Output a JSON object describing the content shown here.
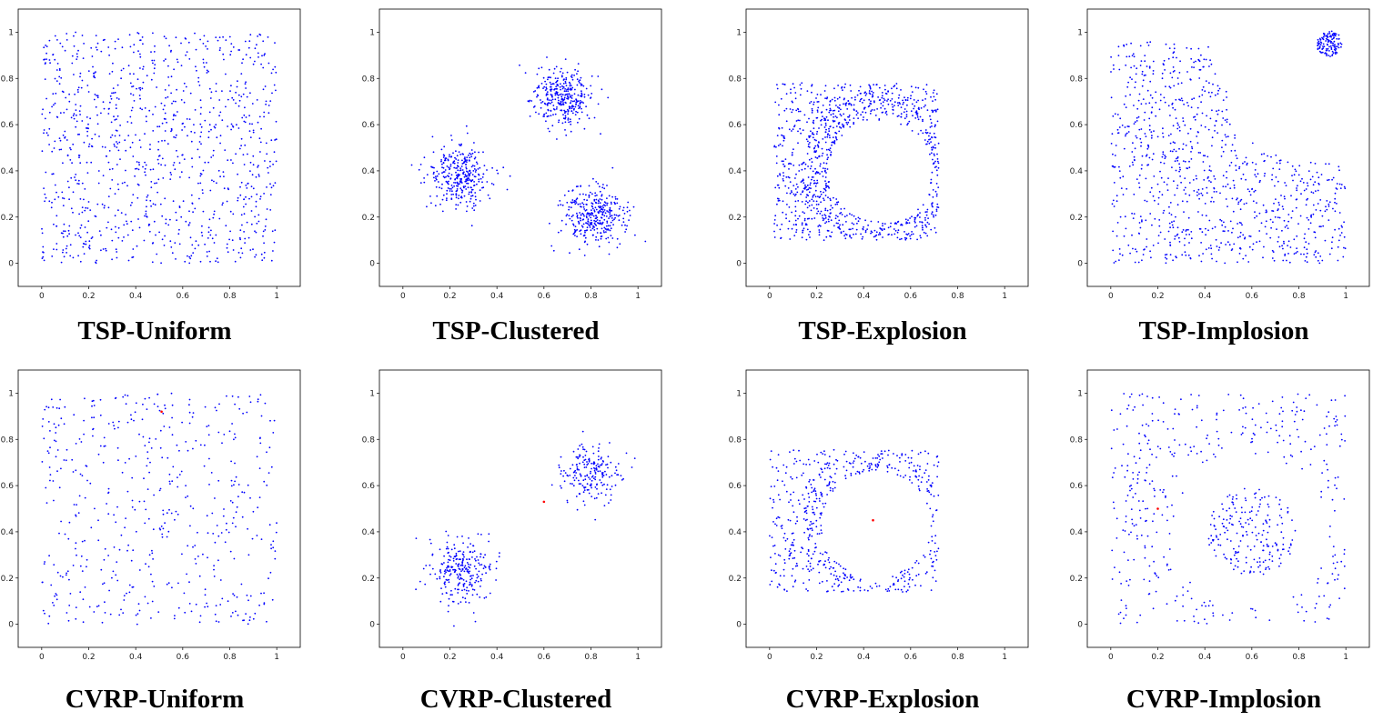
{
  "colors": {
    "city": "#0000ff",
    "depot": "#ff0000",
    "frame": "#000000"
  },
  "panels": [
    {
      "caption": "TSP-Uniform"
    },
    {
      "caption": "TSP-Clustered"
    },
    {
      "caption": "TSP-Explosion"
    },
    {
      "caption": "TSP-Implosion"
    },
    {
      "caption": "CVRP-Uniform"
    },
    {
      "caption": "CVRP-Clustered"
    },
    {
      "caption": "CVRP-Explosion"
    },
    {
      "caption": "CVRP-Implosion"
    }
  ],
  "chart_data": [
    {
      "type": "scatter",
      "title": "TSP-Uniform",
      "xlim": [
        -0.1,
        1.1
      ],
      "ylim": [
        -0.1,
        1.1
      ],
      "xticks": [
        0,
        0.2,
        0.4,
        0.6,
        0.8,
        1
      ],
      "yticks": [
        0,
        0.2,
        0.4,
        0.6,
        0.8,
        1
      ],
      "xtick_labels": [
        "0",
        "0.2",
        "0.4",
        "0.6",
        "0.8",
        "1"
      ],
      "ytick_labels": [
        "0",
        "0.2",
        "0.4",
        "0.6",
        "0.8",
        "1"
      ],
      "grid": false,
      "series": [
        {
          "kind": "uniform",
          "n": 1000,
          "seed": 11,
          "region": {
            "x": [
              0,
              1
            ],
            "y": [
              0,
              1
            ]
          }
        }
      ],
      "depot": null
    },
    {
      "type": "scatter",
      "title": "TSP-Clustered",
      "xlim": [
        -0.1,
        1.1
      ],
      "ylim": [
        -0.1,
        1.1
      ],
      "xticks": [
        0,
        0.2,
        0.4,
        0.6,
        0.8,
        1
      ],
      "yticks": [
        0,
        0.2,
        0.4,
        0.6,
        0.8,
        1
      ],
      "xtick_labels": [
        "0",
        "0.2",
        "0.4",
        "0.6",
        "0.8",
        "1"
      ],
      "ytick_labels": [
        "0",
        "0.2",
        "0.4",
        "0.6",
        "0.8",
        "1"
      ],
      "grid": false,
      "series": [
        {
          "kind": "gaussian",
          "n": 330,
          "seed": 21,
          "center": [
            0.68,
            0.72
          ],
          "sd": 0.065
        },
        {
          "kind": "gaussian",
          "n": 330,
          "seed": 22,
          "center": [
            0.24,
            0.38
          ],
          "sd": 0.065
        },
        {
          "kind": "gaussian",
          "n": 340,
          "seed": 23,
          "center": [
            0.81,
            0.2
          ],
          "sd": 0.065
        }
      ],
      "depot": null
    },
    {
      "type": "scatter",
      "title": "TSP-Explosion",
      "xlim": [
        -0.1,
        1.1
      ],
      "ylim": [
        -0.1,
        1.1
      ],
      "xticks": [
        0,
        0.2,
        0.4,
        0.6,
        0.8,
        1
      ],
      "yticks": [
        0,
        0.2,
        0.4,
        0.6,
        0.8,
        1
      ],
      "xtick_labels": [
        "0",
        "0.2",
        "0.4",
        "0.6",
        "0.8",
        "1"
      ],
      "ytick_labels": [
        "0",
        "0.2",
        "0.4",
        "0.6",
        "0.8",
        "1"
      ],
      "grid": false,
      "series": [
        {
          "kind": "hole",
          "n": 1000,
          "seed": 31,
          "region": {
            "x": [
              0.02,
              0.72
            ],
            "y": [
              0.1,
              0.78
            ]
          },
          "hole_center": [
            0.47,
            0.4
          ],
          "hole_radius": 0.22,
          "ring_scatter": 0.12
        }
      ],
      "depot": null
    },
    {
      "type": "scatter",
      "title": "TSP-Implosion",
      "xlim": [
        -0.1,
        1.1
      ],
      "ylim": [
        -0.1,
        1.1
      ],
      "xticks": [
        0,
        0.2,
        0.4,
        0.6,
        0.8,
        1
      ],
      "yticks": [
        0,
        0.2,
        0.4,
        0.6,
        0.8,
        1
      ],
      "xtick_labels": [
        "0",
        "0.2",
        "0.4",
        "0.6",
        "0.8",
        "1"
      ],
      "ytick_labels": [
        "0",
        "0.2",
        "0.4",
        "0.6",
        "0.8",
        "1"
      ],
      "grid": false,
      "series": [
        {
          "kind": "staircase",
          "n": 900,
          "seed": 41,
          "region": {
            "x": [
              0,
              1
            ],
            "y": [
              0,
              0.97
            ]
          }
        },
        {
          "kind": "disc",
          "n": 120,
          "seed": 42,
          "center": [
            0.93,
            0.95
          ],
          "radius": 0.055
        }
      ],
      "depot": null
    },
    {
      "type": "scatter",
      "title": "CVRP-Uniform",
      "xlim": [
        -0.1,
        1.1
      ],
      "ylim": [
        -0.1,
        1.1
      ],
      "xticks": [
        0,
        0.2,
        0.4,
        0.6,
        0.8,
        1
      ],
      "yticks": [
        0,
        0.2,
        0.4,
        0.6,
        0.8,
        1
      ],
      "xtick_labels": [
        "0",
        "0.2",
        "0.4",
        "0.6",
        "0.8",
        "1"
      ],
      "ytick_labels": [
        "0",
        "0.2",
        "0.4",
        "0.6",
        "0.8",
        "1"
      ],
      "grid": false,
      "series": [
        {
          "kind": "uniform",
          "n": 500,
          "seed": 51,
          "region": {
            "x": [
              0,
              1
            ],
            "y": [
              0,
              1
            ]
          }
        }
      ],
      "depot": [
        0.51,
        0.92
      ]
    },
    {
      "type": "scatter",
      "title": "CVRP-Clustered",
      "xlim": [
        -0.1,
        1.1
      ],
      "ylim": [
        -0.1,
        1.1
      ],
      "xticks": [
        0,
        0.2,
        0.4,
        0.6,
        0.8,
        1
      ],
      "yticks": [
        0,
        0.2,
        0.4,
        0.6,
        0.8,
        1
      ],
      "xtick_labels": [
        "0",
        "0.2",
        "0.4",
        "0.6",
        "0.8",
        "1"
      ],
      "ytick_labels": [
        "0",
        "0.2",
        "0.4",
        "0.6",
        "0.8",
        "1"
      ],
      "grid": false,
      "series": [
        {
          "kind": "gaussian",
          "n": 260,
          "seed": 61,
          "center": [
            0.24,
            0.23
          ],
          "sd": 0.07
        },
        {
          "kind": "gaussian",
          "n": 200,
          "seed": 62,
          "center": [
            0.8,
            0.65
          ],
          "sd": 0.065
        }
      ],
      "depot": [
        0.6,
        0.53
      ]
    },
    {
      "type": "scatter",
      "title": "CVRP-Explosion",
      "xlim": [
        -0.1,
        1.1
      ],
      "ylim": [
        -0.1,
        1.1
      ],
      "xticks": [
        0,
        0.2,
        0.4,
        0.6,
        0.8,
        1
      ],
      "yticks": [
        0,
        0.2,
        0.4,
        0.6,
        0.8,
        1
      ],
      "xtick_labels": [
        "0",
        "0.2",
        "0.4",
        "0.6",
        "0.8",
        "1"
      ],
      "ytick_labels": [
        "0",
        "0.2",
        "0.4",
        "0.6",
        "0.8",
        "1"
      ],
      "grid": false,
      "series": [
        {
          "kind": "hole",
          "n": 550,
          "seed": 71,
          "region": {
            "x": [
              0.0,
              0.72
            ],
            "y": [
              0.14,
              0.76
            ]
          },
          "hole_center": [
            0.45,
            0.43
          ],
          "hole_radius": 0.23,
          "ring_scatter": 0.11
        }
      ],
      "depot": [
        0.44,
        0.45
      ]
    },
    {
      "type": "scatter",
      "title": "CVRP-Implosion",
      "xlim": [
        -0.1,
        1.1
      ],
      "ylim": [
        -0.1,
        1.1
      ],
      "xticks": [
        0,
        0.2,
        0.4,
        0.6,
        0.8,
        1
      ],
      "yticks": [
        0,
        0.2,
        0.4,
        0.6,
        0.8,
        1
      ],
      "xtick_labels": [
        "0",
        "0.2",
        "0.4",
        "0.6",
        "0.8",
        "1"
      ],
      "ytick_labels": [
        "0",
        "0.2",
        "0.4",
        "0.6",
        "0.8",
        "1"
      ],
      "grid": false,
      "series": [
        {
          "kind": "hole",
          "n": 380,
          "seed": 81,
          "region": {
            "x": [
              0,
              1
            ],
            "y": [
              0,
              1
            ]
          },
          "hole_center": [
            0.6,
            0.4
          ],
          "hole_radius": 0.33,
          "ring_scatter": 0.0
        },
        {
          "kind": "disc",
          "n": 200,
          "seed": 82,
          "center": [
            0.6,
            0.4
          ],
          "radius": 0.19
        }
      ],
      "depot": [
        0.2,
        0.5
      ]
    }
  ]
}
